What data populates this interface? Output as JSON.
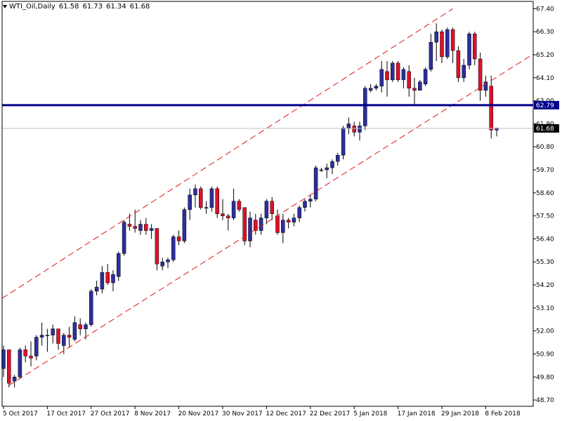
{
  "header": {
    "symbol": "WTI_Oil,Daily",
    "open": "61.58",
    "high": "61.73",
    "low": "61.34",
    "close": "61.68"
  },
  "colors": {
    "bull": "#2e2e9e",
    "bear": "#e0102a",
    "channel": "#e01818",
    "hline": "#00008b",
    "priceLine": "#c0c0c0"
  },
  "chart_data": {
    "type": "candlestick",
    "title": "",
    "ylim": [
      48.4,
      67.75
    ],
    "yticks": [
      "67.40",
      "66.30",
      "65.20",
      "64.10",
      "63.00",
      "61.90",
      "60.80",
      "59.70",
      "58.60",
      "57.50",
      "56.40",
      "55.30",
      "54.20",
      "53.10",
      "52.00",
      "50.90",
      "49.80",
      "48.70"
    ],
    "xticks": [
      {
        "label": "5 Oct 2017",
        "i": 0
      },
      {
        "label": "17 Oct 2017",
        "i": 8
      },
      {
        "label": "27 Oct 2017",
        "i": 16
      },
      {
        "label": "8 Nov 2017",
        "i": 24
      },
      {
        "label": "20 Nov 2017",
        "i": 32
      },
      {
        "label": "30 Nov 2017",
        "i": 40
      },
      {
        "label": "12 Dec 2017",
        "i": 48
      },
      {
        "label": "22 Dec 2017",
        "i": 56
      },
      {
        "label": "5 Jan 2018",
        "i": 64
      },
      {
        "label": "17 Jan 2018",
        "i": 72
      },
      {
        "label": "29 Jan 2018",
        "i": 80
      },
      {
        "label": "8 Feb 2018",
        "i": 88
      }
    ],
    "candles": [
      [
        50.2,
        51.3,
        49.8,
        51.1
      ],
      [
        51.1,
        51.1,
        49.3,
        49.5
      ],
      [
        49.6,
        49.9,
        49.3,
        49.8
      ],
      [
        49.8,
        51.2,
        49.7,
        51.1
      ],
      [
        51.1,
        51.3,
        50.5,
        50.8
      ],
      [
        50.8,
        51.5,
        50.3,
        50.7
      ],
      [
        50.8,
        51.8,
        50.6,
        51.7
      ],
      [
        51.7,
        52.4,
        51.3,
        51.8
      ],
      [
        51.8,
        52.1,
        51.0,
        51.8
      ],
      [
        51.8,
        52.3,
        51.4,
        52.1
      ],
      [
        52.1,
        52.1,
        51.1,
        51.4
      ],
      [
        51.3,
        51.9,
        50.9,
        51.8
      ],
      [
        51.8,
        52.2,
        51.2,
        51.7
      ],
      [
        51.6,
        52.7,
        51.5,
        52.4
      ],
      [
        52.3,
        52.6,
        51.8,
        52.1
      ],
      [
        52.1,
        52.4,
        51.6,
        52.3
      ],
      [
        52.3,
        54.0,
        52.2,
        53.9
      ],
      [
        53.9,
        54.4,
        53.7,
        54.1
      ],
      [
        54.0,
        55.1,
        53.8,
        54.8
      ],
      [
        54.8,
        55.2,
        54.2,
        54.3
      ],
      [
        54.3,
        54.9,
        53.9,
        54.7
      ],
      [
        54.6,
        55.8,
        54.4,
        55.7
      ],
      [
        55.7,
        57.3,
        55.6,
        57.2
      ],
      [
        57.1,
        57.6,
        56.8,
        57.0
      ],
      [
        57.0,
        57.8,
        56.7,
        56.9
      ],
      [
        56.8,
        57.3,
        56.6,
        57.1
      ],
      [
        57.1,
        57.4,
        56.6,
        56.8
      ],
      [
        56.8,
        57.1,
        56.4,
        56.9
      ],
      [
        56.9,
        56.9,
        54.9,
        55.2
      ],
      [
        55.1,
        55.5,
        54.9,
        55.3
      ],
      [
        55.3,
        55.5,
        55.0,
        55.4
      ],
      [
        55.4,
        56.6,
        55.3,
        56.5
      ],
      [
        56.5,
        56.8,
        56.1,
        56.3
      ],
      [
        56.3,
        57.9,
        56.2,
        57.8
      ],
      [
        57.8,
        58.8,
        57.3,
        58.5
      ],
      [
        58.5,
        59.0,
        57.9,
        58.8
      ],
      [
        58.8,
        58.9,
        57.8,
        57.9
      ],
      [
        57.9,
        58.2,
        57.6,
        57.9
      ],
      [
        57.9,
        58.9,
        57.7,
        58.8
      ],
      [
        58.8,
        58.9,
        57.4,
        57.6
      ],
      [
        57.6,
        58.3,
        57.3,
        57.5
      ],
      [
        57.5,
        57.6,
        56.8,
        57.4
      ],
      [
        57.4,
        58.8,
        57.3,
        58.2
      ],
      [
        58.2,
        58.3,
        57.7,
        57.8
      ],
      [
        57.9,
        57.9,
        56.1,
        56.3
      ],
      [
        56.3,
        57.7,
        56.0,
        57.4
      ],
      [
        57.3,
        57.6,
        56.6,
        56.8
      ],
      [
        56.8,
        57.6,
        56.6,
        57.4
      ],
      [
        57.4,
        58.3,
        57.1,
        58.2
      ],
      [
        58.2,
        58.4,
        57.3,
        57.6
      ],
      [
        57.5,
        57.8,
        56.6,
        56.7
      ],
      [
        56.7,
        57.6,
        56.2,
        57.3
      ],
      [
        57.3,
        57.4,
        56.9,
        57.2
      ],
      [
        57.2,
        57.6,
        57.0,
        57.4
      ],
      [
        57.4,
        58.0,
        57.2,
        57.9
      ],
      [
        57.9,
        58.3,
        57.7,
        58.2
      ],
      [
        58.2,
        58.5,
        57.9,
        58.3
      ],
      [
        58.3,
        59.9,
        58.2,
        59.8
      ],
      [
        59.7,
        59.8,
        59.6,
        59.7
      ],
      [
        59.7,
        60.0,
        59.3,
        59.8
      ],
      [
        59.8,
        60.2,
        59.5,
        60.1
      ],
      [
        60.1,
        60.5,
        59.9,
        60.4
      ],
      [
        60.4,
        61.8,
        60.2,
        61.7
      ],
      [
        61.7,
        62.2,
        61.4,
        61.9
      ],
      [
        61.8,
        62.0,
        61.3,
        61.5
      ],
      [
        61.5,
        62.0,
        61.1,
        61.8
      ],
      [
        61.8,
        63.7,
        61.6,
        63.6
      ],
      [
        63.5,
        63.8,
        63.4,
        63.6
      ],
      [
        63.6,
        63.8,
        63.5,
        63.7
      ],
      [
        63.7,
        64.9,
        63.4,
        64.5
      ],
      [
        64.4,
        64.9,
        63.2,
        64.0
      ],
      [
        64.0,
        64.9,
        63.9,
        64.8
      ],
      [
        64.8,
        64.9,
        63.9,
        64.0
      ],
      [
        64.0,
        64.6,
        63.6,
        64.5
      ],
      [
        64.4,
        64.7,
        63.2,
        63.6
      ],
      [
        63.6,
        64.1,
        62.8,
        63.5
      ],
      [
        63.5,
        64.0,
        63.5,
        63.9
      ],
      [
        63.8,
        64.6,
        63.7,
        64.5
      ],
      [
        64.5,
        66.2,
        64.4,
        65.8
      ],
      [
        65.8,
        66.7,
        64.9,
        66.3
      ],
      [
        66.3,
        66.4,
        64.8,
        65.1
      ],
      [
        65.1,
        66.5,
        65.0,
        66.4
      ],
      [
        66.4,
        66.5,
        64.8,
        65.4
      ],
      [
        65.4,
        65.6,
        63.9,
        64.1
      ],
      [
        64.1,
        65.0,
        63.9,
        64.7
      ],
      [
        64.7,
        66.3,
        64.5,
        66.2
      ],
      [
        66.2,
        66.3,
        64.7,
        65.0
      ],
      [
        65.0,
        65.3,
        63.0,
        63.5
      ],
      [
        63.5,
        64.2,
        63.2,
        63.9
      ],
      [
        63.7,
        64.2,
        61.2,
        61.6
      ],
      [
        61.6,
        61.7,
        61.3,
        61.7
      ]
    ],
    "channel": {
      "lower": [
        [
          1,
          49.4
        ],
        [
          88,
          63.8
        ]
      ],
      "upper": [
        [
          0,
          53.6
        ],
        [
          82,
          67.4
        ]
      ]
    },
    "hline": {
      "value": "62.79"
    },
    "current": {
      "value": "61.68"
    }
  }
}
